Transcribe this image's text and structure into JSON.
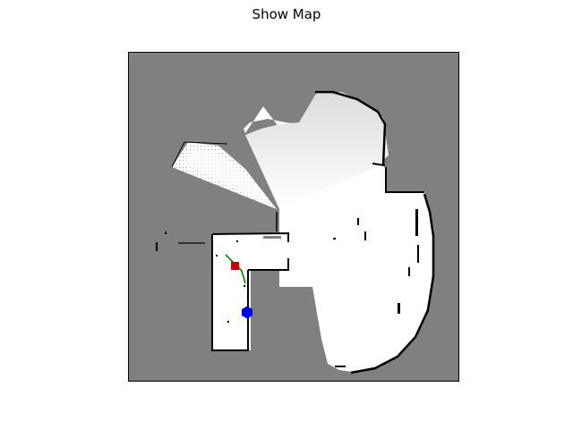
{
  "window": {
    "title": "Show Map"
  },
  "map": {
    "colors": {
      "unknown": "#808080",
      "free": "#ffffff",
      "occupied": "#000000",
      "path": "#008000",
      "goal_marker": "#cc0000",
      "robot_marker": "#0000ee"
    },
    "robot_marker_icon": "blue-hexagon",
    "goal_marker_icon": "red-square"
  }
}
